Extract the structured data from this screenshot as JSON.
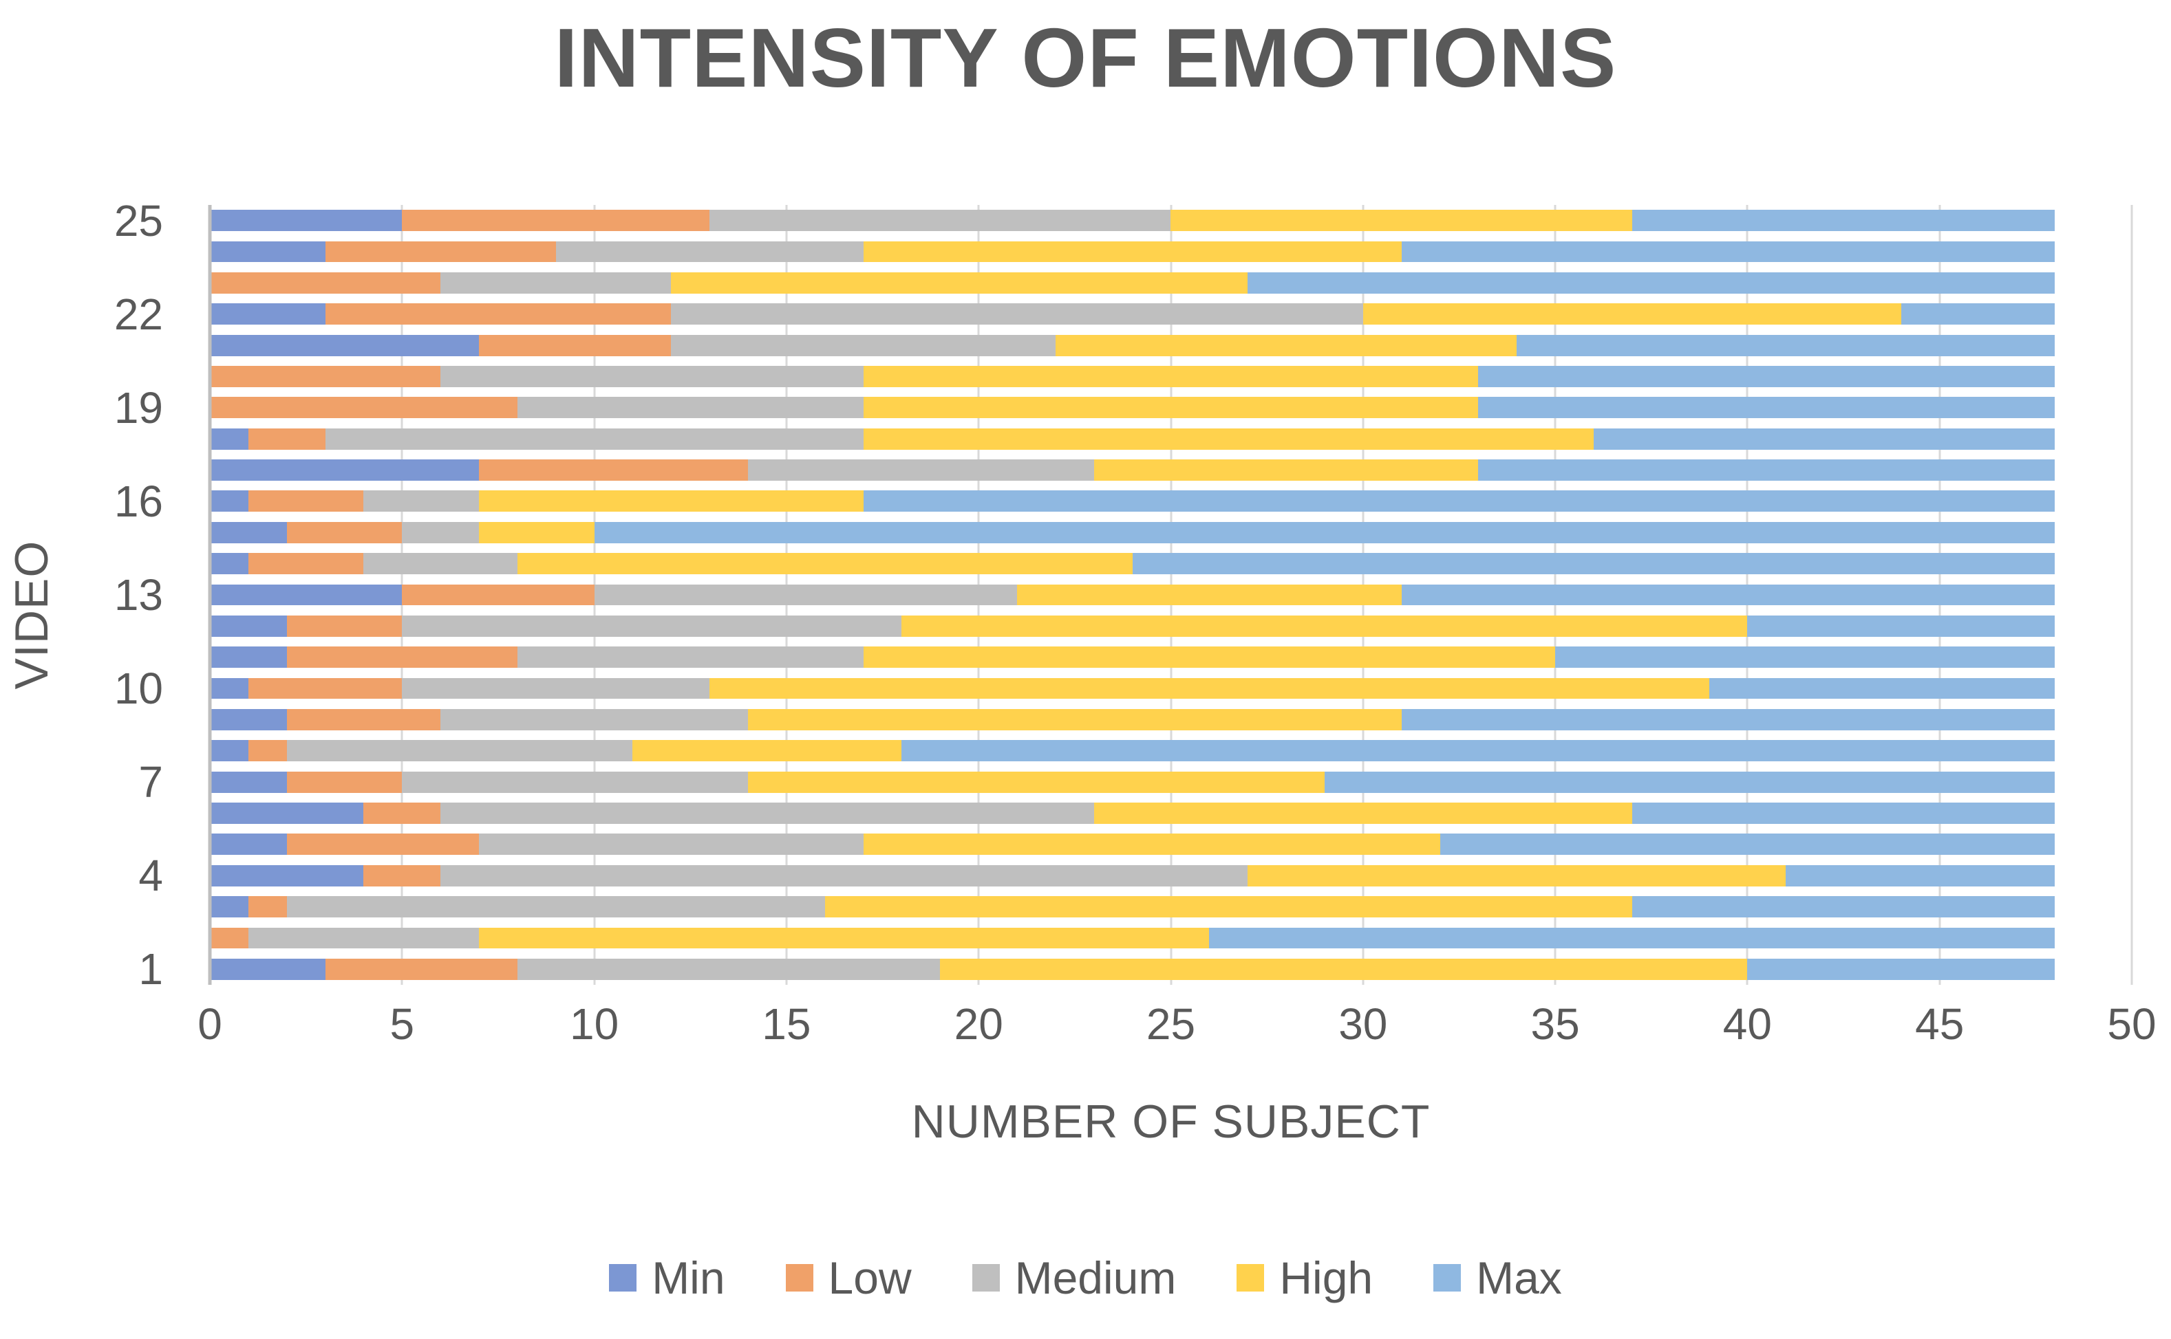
{
  "colors": {
    "text": "#595959",
    "gridline": "#D9D9D9",
    "axis_line": "#BFBFBF",
    "background": "#FFFFFF"
  },
  "chart_data": {
    "type": "bar",
    "variant": "horizontal-stacked",
    "title": "INTENSITY OF EMOTIONS",
    "xlabel": "NUMBER OF SUBJECT",
    "ylabel": "VIDEO",
    "xlim": [
      0,
      50
    ],
    "x_ticks": [
      0,
      5,
      10,
      15,
      20,
      25,
      30,
      35,
      40,
      45,
      50
    ],
    "y_tick_labels_shown": [
      25,
      22,
      19,
      16,
      13,
      10,
      7,
      4,
      1
    ],
    "grid": "vertical",
    "legend_position": "bottom",
    "bar_total": 48,
    "categories_top_to_bottom": [
      25,
      24,
      23,
      22,
      21,
      20,
      19,
      18,
      17,
      16,
      15,
      14,
      13,
      12,
      11,
      10,
      9,
      8,
      7,
      6,
      5,
      4,
      3,
      2,
      1
    ],
    "series": [
      {
        "name": "Min",
        "color": "#7C97D3",
        "values": [
          5,
          3,
          0,
          3,
          7,
          0,
          0,
          1,
          7,
          1,
          2,
          1,
          5,
          2,
          2,
          1,
          2,
          1,
          2,
          4,
          2,
          4,
          1,
          0,
          3
        ]
      },
      {
        "name": "Low",
        "color": "#F0A169",
        "values": [
          8,
          6,
          6,
          9,
          5,
          6,
          8,
          2,
          7,
          3,
          3,
          3,
          5,
          3,
          6,
          4,
          4,
          1,
          3,
          2,
          5,
          2,
          1,
          1,
          5
        ]
      },
      {
        "name": "Medium",
        "color": "#BFBFBF",
        "values": [
          12,
          8,
          6,
          18,
          10,
          11,
          9,
          14,
          9,
          3,
          2,
          4,
          11,
          13,
          9,
          8,
          8,
          9,
          9,
          17,
          10,
          21,
          14,
          6,
          11
        ]
      },
      {
        "name": "High",
        "color": "#FFD24D",
        "values": [
          12,
          14,
          15,
          14,
          12,
          16,
          16,
          19,
          10,
          10,
          3,
          16,
          10,
          22,
          18,
          26,
          17,
          7,
          15,
          14,
          15,
          14,
          21,
          19,
          21
        ]
      },
      {
        "name": "Max",
        "color": "#8FB8E1",
        "values": [
          11,
          17,
          21,
          4,
          14,
          15,
          15,
          12,
          15,
          31,
          38,
          24,
          17,
          8,
          13,
          9,
          17,
          30,
          19,
          11,
          16,
          7,
          11,
          22,
          8
        ]
      }
    ]
  }
}
